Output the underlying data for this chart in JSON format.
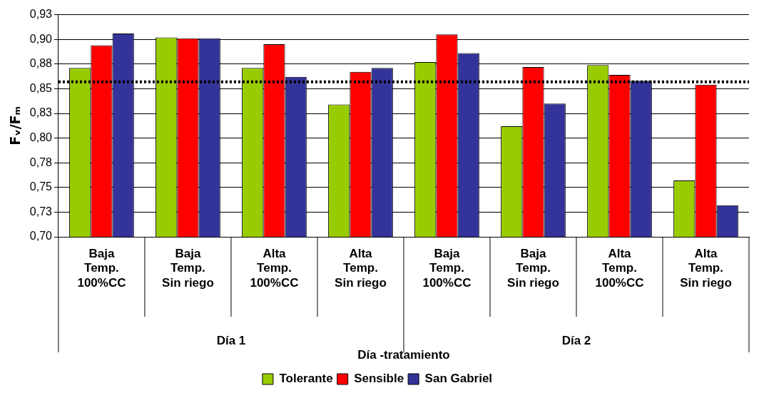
{
  "chart_data": {
    "type": "bar",
    "xlabel": "Día -tratamiento",
    "ylabel": "Fᵥ/Fₘ",
    "categories": [
      "Baja Temp. 100%CC",
      "Baja Temp. Sin riego",
      "Alta Temp. 100%CC",
      "Alta Temp. Sin riego",
      "Baja Temp. 100%CC",
      "Baja Temp. Sin riego",
      "Alta Temp. 100%CC",
      "Alta Temp. Sin riego"
    ],
    "series": [
      {
        "name": "Tolerante",
        "color": "#99cc00",
        "values": [
          0.871,
          0.902,
          0.871,
          0.834,
          0.877,
          0.812,
          0.874,
          0.757
        ]
      },
      {
        "name": "Sensible",
        "color": "#ff0000",
        "values": [
          0.894,
          0.901,
          0.895,
          0.867,
          0.905,
          0.872,
          0.864,
          0.854
        ]
      },
      {
        "name": "San Gabriel",
        "color": "#333399",
        "values": [
          0.906,
          0.901,
          0.862,
          0.871,
          0.886,
          0.835,
          0.858,
          0.732
        ]
      }
    ],
    "ylim": [
      0.7,
      0.925
    ],
    "yticks": [
      {
        "value": 0.7,
        "label": "0,70"
      },
      {
        "value": 0.725,
        "label": "0,73"
      },
      {
        "value": 0.75,
        "label": "0,75"
      },
      {
        "value": 0.775,
        "label": "0,78"
      },
      {
        "value": 0.8,
        "label": "0,80"
      },
      {
        "value": 0.825,
        "label": "0,83"
      },
      {
        "value": 0.85,
        "label": "0,85"
      },
      {
        "value": 0.875,
        "label": "0,88"
      },
      {
        "value": 0.9,
        "label": "0,90"
      },
      {
        "value": 0.925,
        "label": "0,93"
      }
    ],
    "ref_lines": [
      {
        "axis": "y",
        "value": 0.857,
        "color": "#000000",
        "line_style": "dotted"
      }
    ],
    "annotations": [
      "Día 1",
      "Día 2"
    ],
    "grid": "y",
    "legend": "bottom"
  }
}
